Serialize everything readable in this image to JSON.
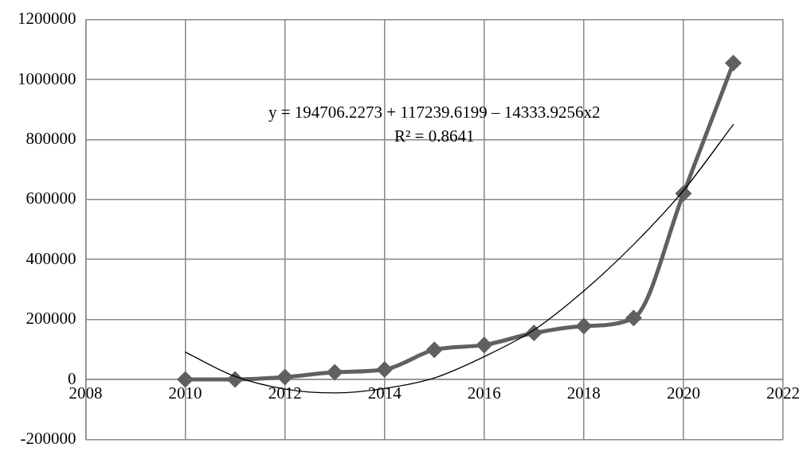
{
  "chart_data": {
    "type": "line",
    "x": [
      2010,
      2011,
      2012,
      2013,
      2014,
      2015,
      2016,
      2017,
      2018,
      2019,
      2020,
      2021
    ],
    "series": [
      {
        "color": "#606060",
        "marker": "diamond",
        "values": [
          0,
          0,
          8000,
          24000,
          33000,
          99000,
          115000,
          155000,
          178000,
          205000,
          620000,
          1055000
        ]
      },
      {
        "type": "line",
        "color": "#000000",
        "marker": "none",
        "values": [
          91000,
          10000,
          -32000,
          -45000,
          -30000,
          5000,
          76000,
          165000,
          295000,
          450000,
          630000,
          850000
        ]
      }
    ],
    "xlim": [
      2008,
      2022
    ],
    "xticks": [
      2008,
      2010,
      2012,
      2014,
      2016,
      2018,
      2020,
      2022
    ],
    "ylim": [
      -200000,
      1200000
    ],
    "yticks": [
      -200000,
      0,
      200000,
      400000,
      600000,
      800000,
      1000000,
      1200000
    ],
    "grid": true,
    "legend": false,
    "annotations": [
      "y = 194706.2273 + 117239.6199 – 14333.9256x2",
      "R² = 0.8641"
    ]
  }
}
